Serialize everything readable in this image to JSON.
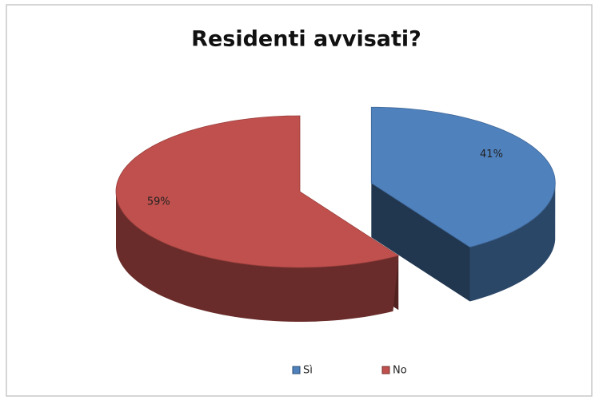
{
  "chart_data": {
    "type": "pie",
    "title": "Residenti avvisati?",
    "categories": [
      "Sì",
      "No"
    ],
    "values": [
      41,
      59
    ],
    "value_labels": [
      "41%",
      "59%"
    ],
    "colors": [
      "#4f81bd",
      "#c0504d"
    ],
    "legend": "bottom"
  }
}
